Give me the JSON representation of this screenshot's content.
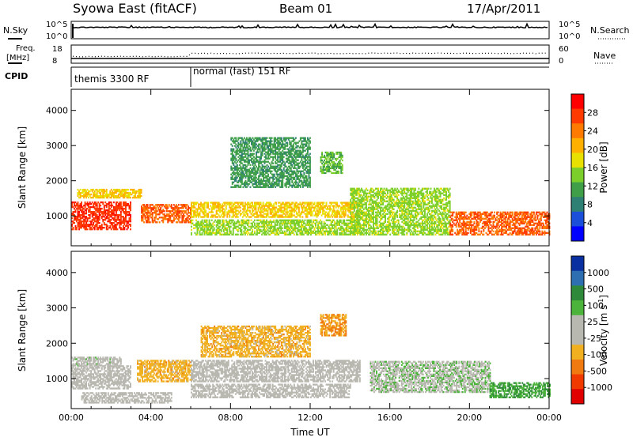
{
  "header": {
    "title": "Syowa East (fitACF)",
    "beam": "Beam 01",
    "date": "17/Apr/2011"
  },
  "noise_panel": {
    "left_label": "N.Sky",
    "right_label": "N.Search",
    "tick_top": "10^5",
    "tick_bottom": "10^0"
  },
  "freq_panel": {
    "left_label_1": "Freq.",
    "left_label_2": "[MHz]",
    "left_tick_top": "18",
    "left_tick_bottom": "8",
    "right_label": "Nave",
    "right_tick_top": "60",
    "right_tick_bottom": "0"
  },
  "cpid_panel": {
    "label": "CPID",
    "modes": [
      {
        "name": "themis 3300 RF",
        "start_hour": 0
      },
      {
        "name": "normal (fast) 151 RF",
        "start_hour": 6
      }
    ]
  },
  "colorbars": {
    "power": {
      "label": "Power [dB]",
      "ticks": [
        "4",
        "8",
        "12",
        "16",
        "20",
        "24",
        "28"
      ],
      "colors": [
        "#0000ff",
        "#1c4fd9",
        "#2e7f74",
        "#3f9f48",
        "#7ccf2a",
        "#e8e000",
        "#ffb000",
        "#ff7a00",
        "#ff3a00",
        "#ff0000"
      ]
    },
    "velocity": {
      "label": "Velocity [m s",
      "label_sup": "-1",
      "label_end": "]",
      "ticks": [
        "1000",
        "500",
        "100",
        "25",
        "-25",
        "-100",
        "-500",
        "-1000"
      ],
      "colors": [
        "#0a2fa0",
        "#2d6fb0",
        "#2e8a3a",
        "#4cb43a",
        "#b8b8b0",
        "#b8b8b0",
        "#f0b020",
        "#f07a10",
        "#f03a00",
        "#e00000"
      ]
    }
  },
  "chart_data": [
    {
      "type": "heatmap",
      "name": "power",
      "ylabel": "Slant Range [km]",
      "ylim": [
        150,
        4600
      ],
      "yticks": [
        "1000",
        "2000",
        "3000",
        "4000"
      ],
      "xlim": [
        0,
        24
      ],
      "xticks": [
        "00:00",
        "04:00",
        "08:00",
        "12:00",
        "16:00",
        "20:00",
        "00:00"
      ],
      "value_range": [
        0,
        30
      ],
      "regions": [
        {
          "t0": 0.0,
          "t1": 3.0,
          "r0": 600,
          "r1": 1400,
          "value": 26
        },
        {
          "t0": 0.3,
          "t1": 3.5,
          "r0": 1500,
          "r1": 1750,
          "value": 18
        },
        {
          "t0": 3.5,
          "t1": 6.0,
          "r0": 800,
          "r1": 1300,
          "value": 24
        },
        {
          "t0": 6.0,
          "t1": 14.5,
          "r0": 950,
          "r1": 1400,
          "value": 18
        },
        {
          "t0": 6.0,
          "t1": 14.5,
          "r0": 450,
          "r1": 900,
          "value": 14
        },
        {
          "t0": 8.0,
          "t1": 12.0,
          "r0": 1800,
          "r1": 3200,
          "value": 10
        },
        {
          "t0": 12.5,
          "t1": 13.6,
          "r0": 2200,
          "r1": 2800,
          "value": 12
        },
        {
          "t0": 14.0,
          "t1": 19.0,
          "r0": 450,
          "r1": 1800,
          "value": 14
        },
        {
          "t0": 19.0,
          "t1": 24.0,
          "r0": 450,
          "r1": 1100,
          "value": 24
        }
      ]
    },
    {
      "type": "heatmap",
      "name": "velocity",
      "xlabel": "Time UT",
      "ylabel": "Slant Range [km]",
      "ylim": [
        150,
        4600
      ],
      "yticks": [
        "1000",
        "2000",
        "3000",
        "4000"
      ],
      "xlim": [
        0,
        24
      ],
      "xticks": [
        "00:00",
        "04:00",
        "08:00",
        "12:00",
        "16:00",
        "20:00",
        "00:00"
      ],
      "value_range": [
        -1000,
        1000
      ],
      "regions": [
        {
          "t0": 0.0,
          "t1": 3.0,
          "r0": 700,
          "r1": 1350,
          "value": 60
        },
        {
          "t0": 0.0,
          "t1": 2.5,
          "r0": 1350,
          "r1": 1600,
          "value": 100
        },
        {
          "t0": 3.3,
          "t1": 6.0,
          "r0": 900,
          "r1": 1500,
          "value": -300
        },
        {
          "t0": 0.5,
          "t1": 5.0,
          "r0": 300,
          "r1": 600,
          "value": -60
        },
        {
          "t0": 6.0,
          "t1": 14.5,
          "r0": 900,
          "r1": 1500,
          "value": 0
        },
        {
          "t0": 6.0,
          "t1": 14.0,
          "r0": 450,
          "r1": 850,
          "value": -60
        },
        {
          "t0": 6.5,
          "t1": 12.0,
          "r0": 1600,
          "r1": 2500,
          "value": -300
        },
        {
          "t0": 12.5,
          "t1": 13.8,
          "r0": 2200,
          "r1": 2800,
          "value": -400
        },
        {
          "t0": 15.0,
          "t1": 21.0,
          "r0": 600,
          "r1": 1500,
          "value": 150
        },
        {
          "t0": 21.0,
          "t1": 24.0,
          "r0": 450,
          "r1": 900,
          "value": 400
        }
      ]
    }
  ]
}
